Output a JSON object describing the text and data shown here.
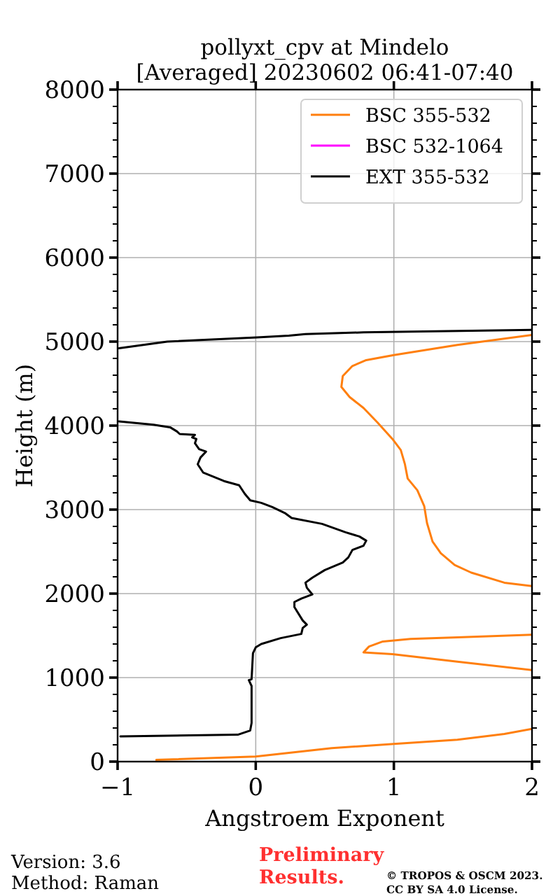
{
  "chart_data": {
    "type": "line",
    "title": "pollyxt_cpv at Mindelo",
    "subtitle": "[Averaged] 20230602 06:41-07:40",
    "xlabel": "Angstroem Exponent",
    "ylabel": "Height (m)",
    "xlim": [
      -1,
      2
    ],
    "xticks": [
      {
        "value": -1,
        "label": "−1"
      },
      0,
      1,
      2
    ],
    "ylim": [
      0,
      8000
    ],
    "yticks": [
      0,
      {
        "value": 200,
        "label": null
      },
      {
        "value": 400,
        "label": null
      },
      {
        "value": 600,
        "label": null
      },
      {
        "value": 800,
        "label": null
      },
      1000,
      {
        "value": 1200,
        "label": null
      },
      {
        "value": 1400,
        "label": null
      },
      {
        "value": 1600,
        "label": null
      },
      {
        "value": 1800,
        "label": null
      },
      2000,
      {
        "value": 2200,
        "label": null
      },
      {
        "value": 2400,
        "label": null
      },
      {
        "value": 2600,
        "label": null
      },
      {
        "value": 2800,
        "label": null
      },
      3000,
      {
        "value": 3200,
        "label": null
      },
      {
        "value": 3400,
        "label": null
      },
      {
        "value": 3600,
        "label": null
      },
      {
        "value": 3800,
        "label": null
      },
      4000,
      {
        "value": 4200,
        "label": null
      },
      {
        "value": 4400,
        "label": null
      },
      {
        "value": 4600,
        "label": null
      },
      {
        "value": 4800,
        "label": null
      },
      5000,
      {
        "value": 5200,
        "label": null
      },
      {
        "value": 5400,
        "label": null
      },
      {
        "value": 5600,
        "label": null
      },
      {
        "value": 5800,
        "label": null
      },
      6000,
      {
        "value": 6200,
        "label": null
      },
      {
        "value": 6400,
        "label": null
      },
      {
        "value": 6600,
        "label": null
      },
      {
        "value": 6800,
        "label": null
      },
      7000,
      {
        "value": 7200,
        "label": null
      },
      {
        "value": 7400,
        "label": null
      },
      {
        "value": 7600,
        "label": null
      },
      {
        "value": 7800,
        "label": null
      },
      8000
    ],
    "grid": true,
    "legend": "top right",
    "line_style": "solid",
    "series": [
      {
        "name": "BSC 355-532",
        "color": "#ff7f0e",
        "x": [
          -0.72,
          0.0,
          0.55,
          1.0,
          1.46,
          1.8,
          2.0,
          null,
          2.0,
          1.46,
          0.99,
          0.78,
          0.82,
          0.92,
          1.12,
          1.46,
          2.0,
          null,
          2.0,
          1.8,
          1.56,
          1.44,
          1.34,
          1.28,
          1.24,
          1.22,
          1.17,
          1.1,
          1.08,
          1.05,
          0.99,
          0.88,
          0.78,
          0.68,
          0.62,
          0.63,
          0.7,
          0.8,
          1.0,
          1.46,
          2.0
        ],
        "values": [
          20,
          60,
          160,
          210,
          260,
          330,
          390,
          null,
          1090,
          1190,
          1280,
          1300,
          1370,
          1430,
          1460,
          1480,
          1510,
          null,
          2090,
          2130,
          2250,
          2340,
          2480,
          2620,
          2840,
          3040,
          3230,
          3370,
          3540,
          3710,
          3840,
          4040,
          4210,
          4340,
          4460,
          4590,
          4710,
          4780,
          4840,
          4960,
          5080
        ]
      },
      {
        "name": "BSC 532-1064",
        "color": "#ff00ff"
      },
      {
        "name": "EXT 355-532",
        "color": "#000000",
        "x": [
          -0.98,
          -0.13,
          -0.04,
          -0.03,
          -0.03,
          -0.05,
          -0.03,
          -0.02,
          0.0,
          0.04,
          0.18,
          0.33,
          0.34,
          0.37,
          0.34,
          0.28,
          0.28,
          0.33,
          0.41,
          0.37,
          0.36,
          0.41,
          0.5,
          0.63,
          0.67,
          0.7,
          0.78,
          0.8,
          0.75,
          0.65,
          0.48,
          0.26,
          0.21,
          0.12,
          0.04,
          -0.04,
          -0.06,
          -0.08,
          -0.12,
          -0.23,
          -0.38,
          -0.42,
          -0.4,
          -0.36,
          -0.41,
          -0.44,
          -0.43,
          -0.46,
          -0.44,
          -0.55,
          -0.57,
          -0.62,
          -0.74,
          -0.99,
          null,
          -0.99,
          -0.64,
          0.01,
          0.24,
          0.36,
          0.78,
          2.0
        ],
        "values": [
          300,
          320,
          370,
          460,
          900,
          970,
          980,
          1290,
          1360,
          1400,
          1470,
          1520,
          1590,
          1630,
          1680,
          1840,
          1900,
          1940,
          1990,
          2070,
          2130,
          2190,
          2280,
          2370,
          2430,
          2520,
          2570,
          2630,
          2680,
          2730,
          2830,
          2900,
          2960,
          3030,
          3080,
          3110,
          3150,
          3190,
          3290,
          3340,
          3440,
          3540,
          3620,
          3690,
          3720,
          3790,
          3840,
          3860,
          3890,
          3900,
          3930,
          3980,
          4010,
          4050,
          null,
          4920,
          5000,
          5050,
          5070,
          5090,
          5110,
          5140
        ]
      }
    ],
    "annotations": [
      "Version: 3.6",
      "Method: Raman",
      "Preliminary Results.",
      "© TROPOS & OSCM 2023. CC BY SA 4.0 License."
    ]
  }
}
